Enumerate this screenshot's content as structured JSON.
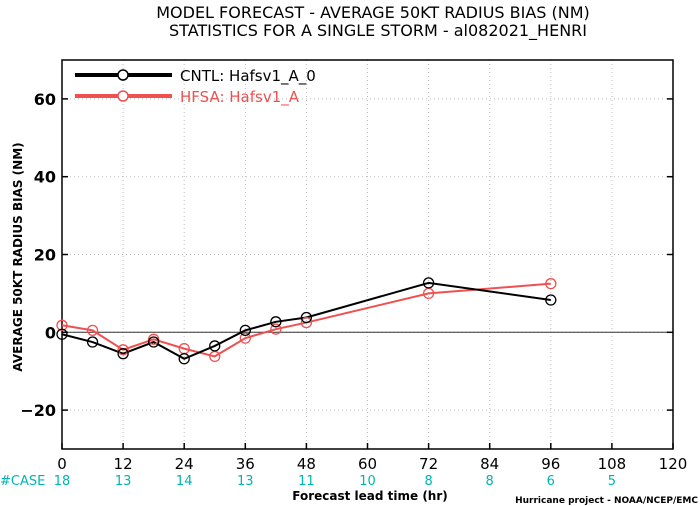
{
  "chart_data": {
    "type": "line",
    "title_line1": "MODEL FORECAST - AVERAGE 50KT RADIUS BIAS (NM)",
    "title_line2": "STATISTICS FOR A SINGLE STORM - al082021_HENRI",
    "ylabel": "AVERAGE 50KT RADIUS BIAS (NM)",
    "xlabel": "Forecast lead time (hr)",
    "credit": "Hurricane project - NOAA/NCEP/EMC",
    "xlim": [
      0,
      120
    ],
    "ylim": [
      -30,
      70
    ],
    "xticks": [
      0,
      12,
      24,
      36,
      48,
      60,
      72,
      84,
      96,
      108,
      120
    ],
    "yticks": [
      -20,
      0,
      20,
      40,
      60
    ],
    "grid": true,
    "legend_position": "top-left",
    "case_label": "#CASE",
    "cases": [
      {
        "x": 0,
        "n": "18"
      },
      {
        "x": 12,
        "n": "13"
      },
      {
        "x": 24,
        "n": "14"
      },
      {
        "x": 36,
        "n": "13"
      },
      {
        "x": 48,
        "n": "11"
      },
      {
        "x": 60,
        "n": "10"
      },
      {
        "x": 72,
        "n": "8"
      },
      {
        "x": 84,
        "n": "8"
      },
      {
        "x": 96,
        "n": "6"
      },
      {
        "x": 108,
        "n": "5"
      }
    ],
    "series": [
      {
        "name": "CNTL: Hafsv1_A_0",
        "color": "#000000",
        "x": [
          0,
          6,
          12,
          18,
          24,
          30,
          36,
          42,
          48,
          72,
          96
        ],
        "y": [
          -0.5,
          -2.5,
          -5.5,
          -2.5,
          -6.8,
          -3.5,
          0.5,
          2.7,
          3.8,
          12.7,
          8.3
        ]
      },
      {
        "name": "HFSA: Hafsv1_A",
        "color": "#f05050",
        "x": [
          0,
          6,
          12,
          18,
          24,
          30,
          36,
          42,
          48,
          72,
          96
        ],
        "y": [
          1.8,
          0.5,
          -4.5,
          -1.8,
          -4.2,
          -6.2,
          -1.5,
          0.8,
          2.5,
          10.0,
          12.5
        ]
      }
    ]
  }
}
